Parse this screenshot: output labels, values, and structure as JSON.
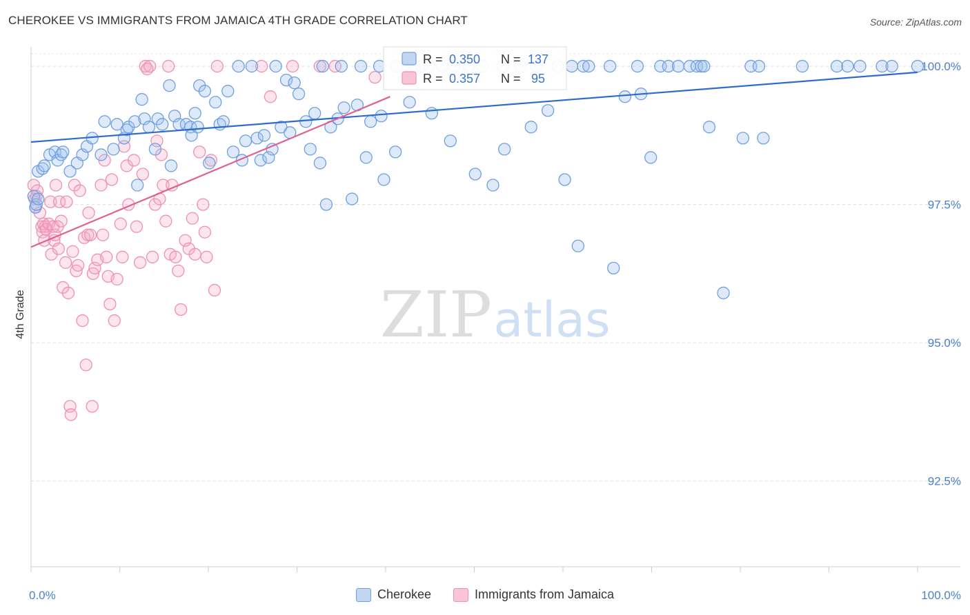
{
  "header": {
    "title": "CHEROKEE VS IMMIGRANTS FROM JAMAICA 4TH GRADE CORRELATION CHART",
    "source": "Source: ZipAtlas.com"
  },
  "watermark": {
    "zip": "ZIP",
    "atlas": "atlas"
  },
  "chart_data": {
    "type": "scatter",
    "ylabel": "4th Grade",
    "x_tick_labels": [
      "0.0%",
      "100.0%"
    ],
    "y_tick_labels": [
      "100.0%",
      "97.5%",
      "95.0%",
      "92.5%"
    ],
    "xlim": [
      0,
      100
    ],
    "ylim": [
      90.95,
      100.35
    ],
    "y_ticks": [
      100.0,
      97.5,
      95.0,
      92.5
    ],
    "grid": true,
    "legend_position": "top-center",
    "colors": {
      "cherokee": "#6f9fe0",
      "jamaica": "#f090b0",
      "cherokee_line": "#2e6ccc",
      "jamaica_line": "#e06090"
    },
    "legend": [
      {
        "r_label": "R = ",
        "r_value": "0.350",
        "n_label": "N = ",
        "n_value": "137"
      },
      {
        "r_label": "R = ",
        "r_value": "0.357",
        "n_label": "N = ",
        "n_value": "95"
      }
    ],
    "series": [
      {
        "name": "Cherokee",
        "trend": {
          "x0": 0,
          "y0": 98.63,
          "x1": 100,
          "y1": 99.89
        },
        "points": [
          [
            0.3,
            97.65
          ],
          [
            0.5,
            97.45
          ],
          [
            0.6,
            97.5
          ],
          [
            0.8,
            97.6
          ],
          [
            0.8,
            98.1
          ],
          [
            1.3,
            98.15
          ],
          [
            1.5,
            98.2
          ],
          [
            2.1,
            98.4
          ],
          [
            2.7,
            98.45
          ],
          [
            3.0,
            98.3
          ],
          [
            3.4,
            98.4
          ],
          [
            3.6,
            98.45
          ],
          [
            4.4,
            98.1
          ],
          [
            5.2,
            98.25
          ],
          [
            5.8,
            98.4
          ],
          [
            6.3,
            98.55
          ],
          [
            6.9,
            98.7
          ],
          [
            7.9,
            98.4
          ],
          [
            8.3,
            99.0
          ],
          [
            9.3,
            98.5
          ],
          [
            9.7,
            98.95
          ],
          [
            10.5,
            98.7
          ],
          [
            10.8,
            98.85
          ],
          [
            11.0,
            98.9
          ],
          [
            11.7,
            99.0
          ],
          [
            12.0,
            97.85
          ],
          [
            12.5,
            99.4
          ],
          [
            12.8,
            99.05
          ],
          [
            13.3,
            98.9
          ],
          [
            14.0,
            98.5
          ],
          [
            14.3,
            99.05
          ],
          [
            14.8,
            98.95
          ],
          [
            15.6,
            99.65
          ],
          [
            15.8,
            98.2
          ],
          [
            16.2,
            99.1
          ],
          [
            16.7,
            98.95
          ],
          [
            17.5,
            98.95
          ],
          [
            18.0,
            98.9
          ],
          [
            18.1,
            98.75
          ],
          [
            18.5,
            99.15
          ],
          [
            18.8,
            98.9
          ],
          [
            19.0,
            99.65
          ],
          [
            19.6,
            99.55
          ],
          [
            20.1,
            98.25
          ],
          [
            20.8,
            99.35
          ],
          [
            21.3,
            98.95
          ],
          [
            21.7,
            99.0
          ],
          [
            22.2,
            99.55
          ],
          [
            22.8,
            98.45
          ],
          [
            23.4,
            100.0
          ],
          [
            23.8,
            98.3
          ],
          [
            24.2,
            98.65
          ],
          [
            24.9,
            100.0
          ],
          [
            25.5,
            98.7
          ],
          [
            25.9,
            98.3
          ],
          [
            26.3,
            98.75
          ],
          [
            26.8,
            98.35
          ],
          [
            27.2,
            98.5
          ],
          [
            27.6,
            100.0
          ],
          [
            28.2,
            98.9
          ],
          [
            28.8,
            99.75
          ],
          [
            29.2,
            98.8
          ],
          [
            29.7,
            99.7
          ],
          [
            30.2,
            99.5
          ],
          [
            31.0,
            99.0
          ],
          [
            31.5,
            98.5
          ],
          [
            32.0,
            99.15
          ],
          [
            32.6,
            98.25
          ],
          [
            32.9,
            100.0
          ],
          [
            33.3,
            97.5
          ],
          [
            33.8,
            98.9
          ],
          [
            34.6,
            99.05
          ],
          [
            35.0,
            100.0
          ],
          [
            35.3,
            99.25
          ],
          [
            36.2,
            97.6
          ],
          [
            36.8,
            99.3
          ],
          [
            37.2,
            100.0
          ],
          [
            37.8,
            98.35
          ],
          [
            38.3,
            99.0
          ],
          [
            39.3,
            100.0
          ],
          [
            39.5,
            99.1
          ],
          [
            39.8,
            97.95
          ],
          [
            41.1,
            98.45
          ],
          [
            41.2,
            100.0
          ],
          [
            42.7,
            99.35
          ],
          [
            43.3,
            100.0
          ],
          [
            44.1,
            100.0
          ],
          [
            44.9,
            100.0
          ],
          [
            45.2,
            99.15
          ],
          [
            46.4,
            100.0
          ],
          [
            47.3,
            98.65
          ],
          [
            47.7,
            100.0
          ],
          [
            49.4,
            100.0
          ],
          [
            50.1,
            98.05
          ],
          [
            50.9,
            100.0
          ],
          [
            52.1,
            97.85
          ],
          [
            53.2,
            100.0
          ],
          [
            53.4,
            98.5
          ],
          [
            55.2,
            100.0
          ],
          [
            56.4,
            98.9
          ],
          [
            57.0,
            100.0
          ],
          [
            58.3,
            99.2
          ],
          [
            59.4,
            100.0
          ],
          [
            60.2,
            97.95
          ],
          [
            61.0,
            100.0
          ],
          [
            61.7,
            96.75
          ],
          [
            62.3,
            100.0
          ],
          [
            62.9,
            100.0
          ],
          [
            65.3,
            100.0
          ],
          [
            65.7,
            96.35
          ],
          [
            67.0,
            99.45
          ],
          [
            68.4,
            100.0
          ],
          [
            68.8,
            99.5
          ],
          [
            69.9,
            98.35
          ],
          [
            71.0,
            100.0
          ],
          [
            71.9,
            100.0
          ],
          [
            73.0,
            100.0
          ],
          [
            74.3,
            100.0
          ],
          [
            75.1,
            100.0
          ],
          [
            75.6,
            100.0
          ],
          [
            75.9,
            100.0
          ],
          [
            76.5,
            98.9
          ],
          [
            78.1,
            95.9
          ],
          [
            80.3,
            98.7
          ],
          [
            81.2,
            100.0
          ],
          [
            82.1,
            100.0
          ],
          [
            82.6,
            98.7
          ],
          [
            87.0,
            100.0
          ],
          [
            90.9,
            100.0
          ],
          [
            92.1,
            100.0
          ],
          [
            93.5,
            100.0
          ],
          [
            96.0,
            100.0
          ],
          [
            97.1,
            100.0
          ],
          [
            100.0,
            100.0
          ]
        ]
      },
      {
        "name": "Immigrants from Jamaica",
        "trend": {
          "x0": 0,
          "y0": 96.73,
          "x1": 40.5,
          "y1": 99.45
        },
        "points": [
          [
            0.3,
            97.85
          ],
          [
            0.4,
            97.6
          ],
          [
            0.5,
            97.45
          ],
          [
            0.6,
            97.65
          ],
          [
            0.7,
            97.75
          ],
          [
            1.0,
            97.35
          ],
          [
            1.2,
            97.1
          ],
          [
            1.3,
            97.0
          ],
          [
            1.4,
            97.15
          ],
          [
            1.5,
            96.85
          ],
          [
            1.6,
            97.1
          ],
          [
            1.7,
            97.05
          ],
          [
            2.0,
            97.15
          ],
          [
            2.2,
            97.55
          ],
          [
            2.3,
            96.6
          ],
          [
            2.5,
            97.1
          ],
          [
            2.6,
            96.85
          ],
          [
            2.7,
            96.95
          ],
          [
            2.8,
            97.85
          ],
          [
            3.0,
            97.1
          ],
          [
            3.1,
            96.7
          ],
          [
            3.2,
            97.55
          ],
          [
            3.4,
            97.2
          ],
          [
            3.6,
            96.0
          ],
          [
            3.9,
            96.45
          ],
          [
            4.0,
            97.55
          ],
          [
            4.2,
            95.9
          ],
          [
            4.4,
            93.85
          ],
          [
            4.5,
            93.7
          ],
          [
            4.7,
            96.65
          ],
          [
            4.9,
            97.85
          ],
          [
            5.1,
            96.3
          ],
          [
            5.3,
            96.4
          ],
          [
            5.5,
            97.75
          ],
          [
            5.8,
            95.4
          ],
          [
            6.0,
            96.9
          ],
          [
            6.2,
            94.6
          ],
          [
            6.4,
            96.95
          ],
          [
            6.5,
            97.35
          ],
          [
            6.7,
            96.95
          ],
          [
            6.9,
            93.85
          ],
          [
            7.0,
            96.25
          ],
          [
            7.2,
            96.35
          ],
          [
            7.5,
            96.5
          ],
          [
            7.9,
            97.85
          ],
          [
            8.1,
            96.95
          ],
          [
            8.3,
            98.3
          ],
          [
            8.5,
            96.55
          ],
          [
            8.7,
            96.2
          ],
          [
            8.9,
            95.7
          ],
          [
            9.1,
            97.95
          ],
          [
            9.4,
            95.4
          ],
          [
            9.7,
            96.15
          ],
          [
            10.1,
            97.15
          ],
          [
            10.3,
            96.55
          ],
          [
            10.5,
            98.55
          ],
          [
            10.8,
            98.2
          ],
          [
            11.0,
            97.5
          ],
          [
            11.6,
            98.3
          ],
          [
            11.9,
            97.1
          ],
          [
            12.3,
            96.45
          ],
          [
            12.6,
            98.05
          ],
          [
            12.9,
            100.0
          ],
          [
            13.1,
            99.95
          ],
          [
            13.4,
            100.0
          ],
          [
            13.7,
            96.55
          ],
          [
            14.0,
            97.5
          ],
          [
            14.2,
            98.65
          ],
          [
            14.5,
            97.6
          ],
          [
            14.7,
            98.4
          ],
          [
            14.9,
            97.85
          ],
          [
            15.2,
            97.2
          ],
          [
            15.5,
            100.0
          ],
          [
            15.7,
            96.6
          ],
          [
            15.9,
            97.85
          ],
          [
            16.3,
            96.55
          ],
          [
            16.6,
            96.3
          ],
          [
            16.9,
            95.6
          ],
          [
            17.4,
            96.85
          ],
          [
            17.8,
            96.7
          ],
          [
            18.2,
            97.25
          ],
          [
            18.5,
            96.6
          ],
          [
            19.0,
            98.45
          ],
          [
            19.4,
            97.5
          ],
          [
            19.6,
            97.0
          ],
          [
            19.8,
            96.55
          ],
          [
            20.3,
            98.3
          ],
          [
            20.7,
            95.95
          ],
          [
            21.0,
            100.0
          ],
          [
            26.0,
            100.0
          ],
          [
            27.0,
            99.45
          ],
          [
            29.5,
            100.0
          ],
          [
            32.6,
            100.0
          ],
          [
            34.3,
            100.0
          ],
          [
            38.8,
            99.8
          ]
        ]
      }
    ]
  }
}
